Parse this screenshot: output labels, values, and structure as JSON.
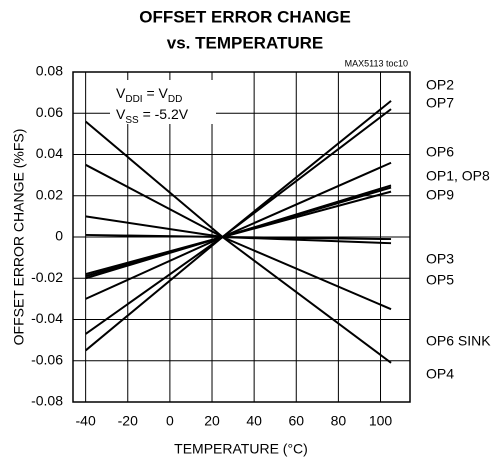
{
  "chart_data": {
    "type": "line",
    "title": "OFFSET ERROR CHANGE",
    "subtitle": "vs. TEMPERATURE",
    "source_note": "MAX5113 toc10",
    "x_label": "TEMPERATURE (°C)",
    "y_label": "OFFSET ERROR CHANGE (%FS)",
    "annotation": [
      [
        "V",
        "DDI",
        " = V",
        "DD"
      ],
      [
        "V",
        "SS",
        " = -5.2V"
      ]
    ],
    "x": [
      -40,
      25,
      105
    ],
    "series": [
      {
        "name": "OP2",
        "color": "#000000",
        "values": [
          -0.055,
          0,
          0.066
        ]
      },
      {
        "name": "OP7",
        "color": "#000000",
        "values": [
          -0.047,
          0,
          0.062
        ]
      },
      {
        "name": "OP6",
        "color": "#000000",
        "values": [
          -0.03,
          0,
          0.036
        ]
      },
      {
        "name": "OP1",
        "color": "#000000",
        "values": [
          -0.02,
          0,
          0.025
        ]
      },
      {
        "name": "OP8",
        "color": "#000000",
        "values": [
          -0.019,
          0,
          0.024
        ]
      },
      {
        "name": "OP9",
        "color": "#000000",
        "values": [
          -0.018,
          0,
          0.022
        ]
      },
      {
        "name": "OP3",
        "color": "#000000",
        "values": [
          0.001,
          0,
          -0.001
        ]
      },
      {
        "name": "OP5",
        "color": "#000000",
        "values": [
          0.01,
          0,
          -0.003
        ]
      },
      {
        "name": "OP6 SINK",
        "color": "#000000",
        "values": [
          0.035,
          0,
          -0.035
        ]
      },
      {
        "name": "OP4",
        "color": "#000000",
        "values": [
          0.056,
          0,
          -0.061
        ]
      }
    ],
    "end_labels": [
      "OP2",
      "OP7",
      "OP6",
      "OP1, OP8",
      "OP9",
      "OP3",
      "OP5",
      "OP6 SINK",
      "OP4"
    ],
    "xlim": [
      -46,
      114
    ],
    "xticks": [
      -40,
      -20,
      0,
      20,
      40,
      60,
      80,
      100
    ],
    "ylim": [
      -0.08,
      0.08
    ],
    "yticks": [
      0.08,
      0.06,
      0.04,
      0.02,
      0,
      -0.02,
      -0.04,
      -0.06,
      -0.08
    ],
    "grid": true
  }
}
